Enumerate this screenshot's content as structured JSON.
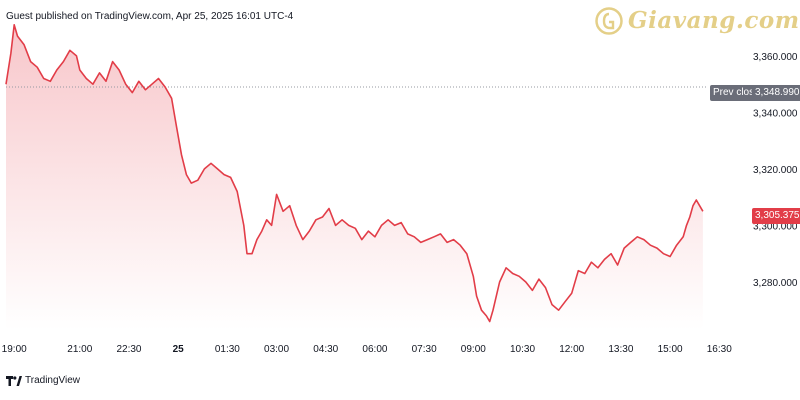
{
  "header": {
    "published": "Guest published on TradingView.com, Apr 25, 2025 16:01 UTC-4"
  },
  "watermark": {
    "text": "Giavang.com",
    "color": "#e4cf88"
  },
  "footer": {
    "brand": "TradingView"
  },
  "badges": {
    "prev_close_label": "Prev close",
    "prev_close_value": "3,348.990",
    "last_value": "3,305.375"
  },
  "colors": {
    "line": "#e23d48",
    "area_top": "#f7c3c7",
    "prev_close_line": "#9598a1",
    "prev_badge": "#6a6d78",
    "last_badge": "#e23d48"
  },
  "chart_data": {
    "type": "area",
    "title": "",
    "xlabel": "",
    "ylabel": "",
    "ylim": [
      3263,
      3372
    ],
    "xlim": [
      18.75,
      40.4
    ],
    "y_ticks": [
      3280,
      3300,
      3320,
      3340,
      3360
    ],
    "y_tick_labels": [
      "3,280.000",
      "3,300.000",
      "3,320.000",
      "3,340.000",
      "3,360.000"
    ],
    "x_ticks": [
      19.0,
      21.0,
      22.5,
      24.0,
      25.5,
      27.0,
      28.5,
      30.0,
      31.5,
      33.0,
      34.5,
      36.0,
      37.5,
      39.0,
      40.5
    ],
    "x_tick_labels": [
      "19:00",
      "21:00",
      "22:30",
      "25",
      "01:30",
      "03:00",
      "04:30",
      "06:00",
      "07:30",
      "09:00",
      "10:30",
      "12:00",
      "13:30",
      "15:00",
      "16:30"
    ],
    "x_tick_bold": [
      "25"
    ],
    "prev_close": 3348.99,
    "last": 3305.375,
    "grid": false,
    "x": [
      18.75,
      18.9,
      19.0,
      19.1,
      19.3,
      19.5,
      19.7,
      19.9,
      20.1,
      20.3,
      20.5,
      20.7,
      20.9,
      21.0,
      21.2,
      21.4,
      21.6,
      21.8,
      22.0,
      22.2,
      22.4,
      22.6,
      22.8,
      23.0,
      23.2,
      23.4,
      23.6,
      23.8,
      23.95,
      24.1,
      24.25,
      24.4,
      24.6,
      24.8,
      25.0,
      25.2,
      25.4,
      25.6,
      25.8,
      26.0,
      26.1,
      26.25,
      26.4,
      26.55,
      26.7,
      26.85,
      27.0,
      27.2,
      27.4,
      27.6,
      27.8,
      28.0,
      28.2,
      28.4,
      28.6,
      28.8,
      29.0,
      29.2,
      29.4,
      29.6,
      29.8,
      30.0,
      30.2,
      30.4,
      30.6,
      30.8,
      31.0,
      31.2,
      31.4,
      31.6,
      31.8,
      32.0,
      32.2,
      32.4,
      32.6,
      32.8,
      33.0,
      33.1,
      33.25,
      33.4,
      33.5,
      33.6,
      33.8,
      34.0,
      34.2,
      34.4,
      34.6,
      34.8,
      35.0,
      35.2,
      35.4,
      35.6,
      35.8,
      36.0,
      36.2,
      36.4,
      36.6,
      36.8,
      37.0,
      37.2,
      37.4,
      37.6,
      37.8,
      38.0,
      38.2,
      38.4,
      38.6,
      38.8,
      39.0,
      39.2,
      39.4,
      39.5,
      39.6,
      39.7,
      39.8,
      39.9,
      40.0
    ],
    "values": [
      3350,
      3361,
      3371,
      3367,
      3364,
      3358,
      3356,
      3352,
      3351,
      3355,
      3358,
      3362,
      3360,
      3355,
      3352,
      3350,
      3354,
      3351,
      3358,
      3355,
      3350,
      3347,
      3351,
      3348,
      3350,
      3352,
      3349,
      3345,
      3335,
      3325,
      3318,
      3315,
      3316,
      3320,
      3322,
      3320,
      3318,
      3317,
      3312,
      3300,
      3290,
      3290,
      3295,
      3298,
      3302,
      3300,
      3311,
      3305,
      3307,
      3300,
      3295,
      3298,
      3302,
      3303,
      3306,
      3300,
      3302,
      3300,
      3299,
      3295,
      3298,
      3296,
      3300,
      3302,
      3300,
      3301,
      3297,
      3296,
      3294,
      3295,
      3296,
      3297,
      3294,
      3295,
      3293,
      3290,
      3282,
      3275,
      3270,
      3268,
      3266,
      3270,
      3280,
      3285,
      3283,
      3282,
      3280,
      3277,
      3281,
      3278,
      3272,
      3270,
      3273,
      3276,
      3284,
      3283,
      3287,
      3285,
      3288,
      3290,
      3286,
      3292,
      3294,
      3296,
      3295,
      3293,
      3292,
      3290,
      3289,
      3293,
      3296,
      3300,
      3303,
      3307,
      3309,
      3307,
      3305
    ]
  }
}
